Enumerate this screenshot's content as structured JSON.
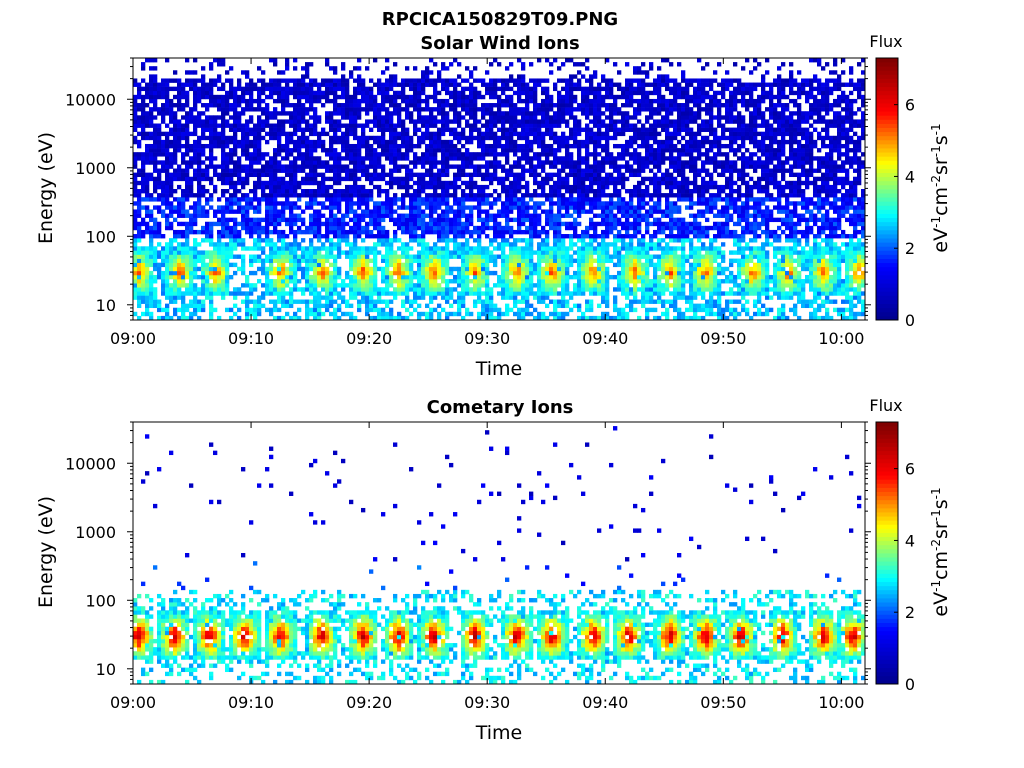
{
  "figure_title": "RPCICA150829T09.PNG",
  "colors": {
    "colormap": [
      "#00008f",
      "#0000ff",
      "#00ffff",
      "#ffff00",
      "#ff0000",
      "#800000"
    ],
    "axis": "#000000",
    "background": "#ffffff"
  },
  "chart_data": [
    {
      "type": "heatmap",
      "title": "Solar Wind Ions",
      "xlabel": "Time",
      "ylabel": "Energy (eV)",
      "y_scale": "log",
      "x_ticks": [
        "09:00",
        "09:10",
        "09:20",
        "09:30",
        "09:40",
        "09:50",
        "10:00"
      ],
      "x_range": [
        "09:00",
        "10:02"
      ],
      "y_ticks": [
        10,
        100,
        1000,
        10000
      ],
      "y_range": [
        6,
        40000
      ],
      "colorbar": {
        "label": "Flux",
        "unit": "eV-1cm-2sr-1s-1",
        "ticks": [
          0,
          2,
          4,
          6
        ],
        "range": [
          0,
          7.3
        ]
      },
      "features": {
        "background_level": 0.8,
        "low_energy_band_ev": [
          6,
          100
        ],
        "low_energy_level": 2.6,
        "peak_energy_ev": 30,
        "peak_level": 5.5,
        "pulse_times_min": [
          0.5,
          4,
          7,
          12.5,
          16,
          19.5,
          22.5,
          25.5,
          29,
          32.5,
          35.5,
          39,
          42.5,
          45.5,
          48.5,
          52.5,
          55.5,
          58.5,
          61.5
        ]
      }
    },
    {
      "type": "heatmap",
      "title": "Cometary Ions",
      "xlabel": "Time",
      "ylabel": "Energy (eV)",
      "y_scale": "log",
      "x_ticks": [
        "09:00",
        "09:10",
        "09:20",
        "09:30",
        "09:40",
        "09:50",
        "10:00"
      ],
      "x_range": [
        "09:00",
        "10:02"
      ],
      "y_ticks": [
        10,
        100,
        1000,
        10000
      ],
      "y_range": [
        6,
        40000
      ],
      "colorbar": {
        "label": "Flux",
        "unit": "eV-1cm-2sr-1s-1",
        "ticks": [
          0,
          2,
          4,
          6
        ],
        "range": [
          0,
          7.3
        ]
      },
      "features": {
        "background_level": 1.0,
        "low_energy_band_ev": [
          6,
          150
        ],
        "low_energy_level": 2.8,
        "peak_energy_ev": 30,
        "peak_level": 6.8,
        "pulse_times_min": [
          0.5,
          3.5,
          6.5,
          9.5,
          12.5,
          16,
          19.5,
          22.5,
          25.5,
          29,
          32.5,
          35.5,
          39,
          42,
          45.5,
          48.5,
          51.5,
          55,
          58.5,
          61
        ]
      }
    }
  ]
}
